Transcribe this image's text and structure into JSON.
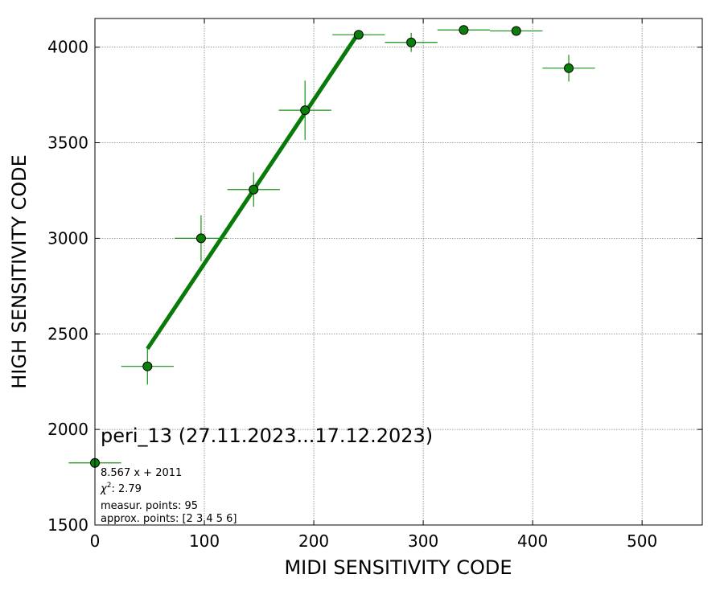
{
  "chart_data": {
    "type": "scatter",
    "xlabel": "MIDI SENSITIVITY CODE",
    "ylabel": "HIGH SENSITIVITY CODE",
    "xlim": [
      0,
      555
    ],
    "ylim": [
      1500,
      4150
    ],
    "xticks": [
      0,
      100,
      200,
      300,
      400,
      500
    ],
    "yticks": [
      1500,
      2000,
      2500,
      3000,
      3500,
      4000
    ],
    "grid": true,
    "colors": {
      "marker": "#0a7f0a",
      "fit": "#077a07",
      "errorbar": "#159015",
      "grid": "#808080"
    },
    "points": [
      {
        "x": 0,
        "y": 1825,
        "xerr": 24,
        "yerr": 0
      },
      {
        "x": 48,
        "y": 2330,
        "xerr": 24,
        "yerr": 95
      },
      {
        "x": 97,
        "y": 3000,
        "xerr": 24,
        "yerr": 120
      },
      {
        "x": 145,
        "y": 3255,
        "xerr": 24,
        "yerr": 90
      },
      {
        "x": 192,
        "y": 3670,
        "xerr": 24,
        "yerr": 155
      },
      {
        "x": 241,
        "y": 4065,
        "xerr": 24,
        "yerr": 0
      },
      {
        "x": 289,
        "y": 4025,
        "xerr": 24,
        "yerr": 50
      },
      {
        "x": 337,
        "y": 4090,
        "xerr": 24,
        "yerr": 0
      },
      {
        "x": 385,
        "y": 4085,
        "xerr": 24,
        "yerr": 0
      },
      {
        "x": 433,
        "y": 3890,
        "xerr": 24,
        "yerr": 70
      }
    ],
    "fit": {
      "slope": 8.567,
      "intercept": 2011,
      "x_range": [
        48,
        241
      ]
    },
    "annotations": {
      "title": "peri_13 (27.11.2023...17.12.2023)",
      "equation": "8.567 x + 2011",
      "chi2_label": "χ",
      "chi2_sup": "2",
      "chi2_value": ": 2.79",
      "measur": "measur. points: 95",
      "approx": "approx. points: [2 3 4 5 6]"
    }
  }
}
